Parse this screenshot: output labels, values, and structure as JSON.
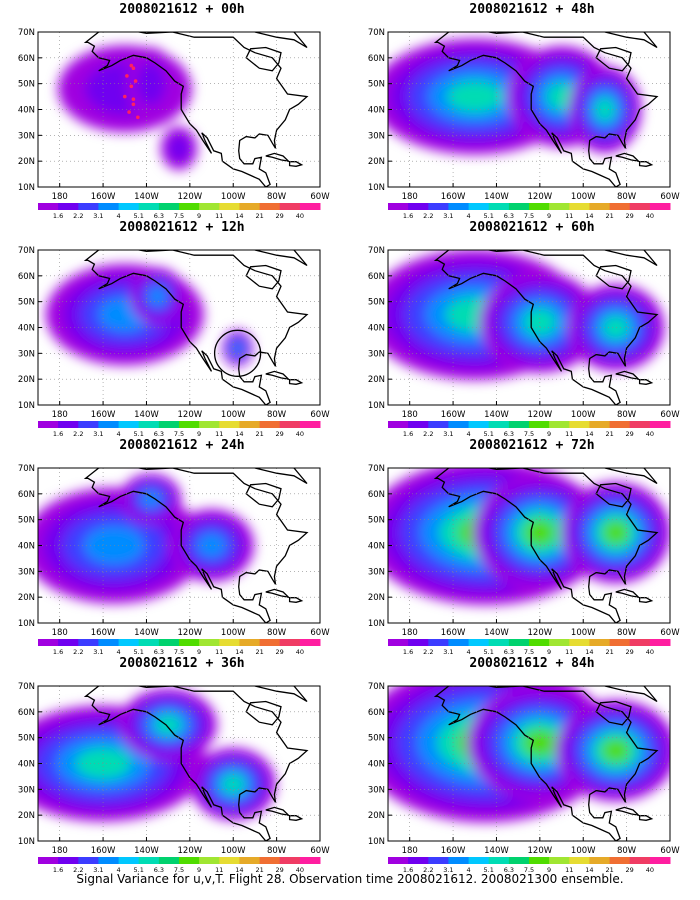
{
  "caption": "Signal Variance for u,v,T. Flight 28. Observation time 2008021612. 2008021300 ensemble.",
  "colorbar": {
    "labels": [
      "1.6",
      "2.2",
      "3.1",
      "4",
      "5.1",
      "6.3",
      "7.5",
      "9",
      "11",
      "14",
      "21",
      "29",
      "40"
    ],
    "colors": [
      "#a000e0",
      "#7000f0",
      "#3c3cff",
      "#008cff",
      "#00c8ff",
      "#00dcb4",
      "#00d26e",
      "#50dc00",
      "#a0e632",
      "#e6dc32",
      "#e6aa28",
      "#f06e32",
      "#f03c64",
      "#ff1ea0"
    ]
  },
  "axes": {
    "x_ticks": [
      "180",
      "160W",
      "140W",
      "120W",
      "100W",
      "80W",
      "60W"
    ],
    "y_ticks": [
      "10N",
      "20N",
      "30N",
      "40N",
      "50N",
      "60N",
      "70N"
    ]
  },
  "panels": [
    {
      "title": "2008021612 + 00h",
      "column": "left",
      "intensity": 0.35,
      "flight_track": true,
      "circle": false,
      "show_colorbar": true
    },
    {
      "title": "2008021612 + 12h",
      "column": "left",
      "intensity": 0.5,
      "flight_track": false,
      "circle": true,
      "show_colorbar": true
    },
    {
      "title": "2008021612 + 24h",
      "column": "left",
      "intensity": 0.6,
      "flight_track": false,
      "circle": false,
      "show_colorbar": true
    },
    {
      "title": "2008021612 + 36h",
      "column": "left",
      "intensity": 0.65,
      "flight_track": false,
      "circle": false,
      "show_colorbar": true
    },
    {
      "title": "2008021612 + 48h",
      "column": "right",
      "intensity": 0.7,
      "flight_track": false,
      "circle": false,
      "show_colorbar": true
    },
    {
      "title": "2008021612 + 60h",
      "column": "right",
      "intensity": 0.75,
      "flight_track": false,
      "circle": false,
      "show_colorbar": true
    },
    {
      "title": "2008021612 + 72h",
      "column": "right",
      "intensity": 0.8,
      "flight_track": false,
      "circle": false,
      "show_colorbar": true
    },
    {
      "title": "2008021612 + 84h",
      "column": "right",
      "intensity": 0.85,
      "flight_track": false,
      "circle": false,
      "show_colorbar": true
    }
  ]
}
